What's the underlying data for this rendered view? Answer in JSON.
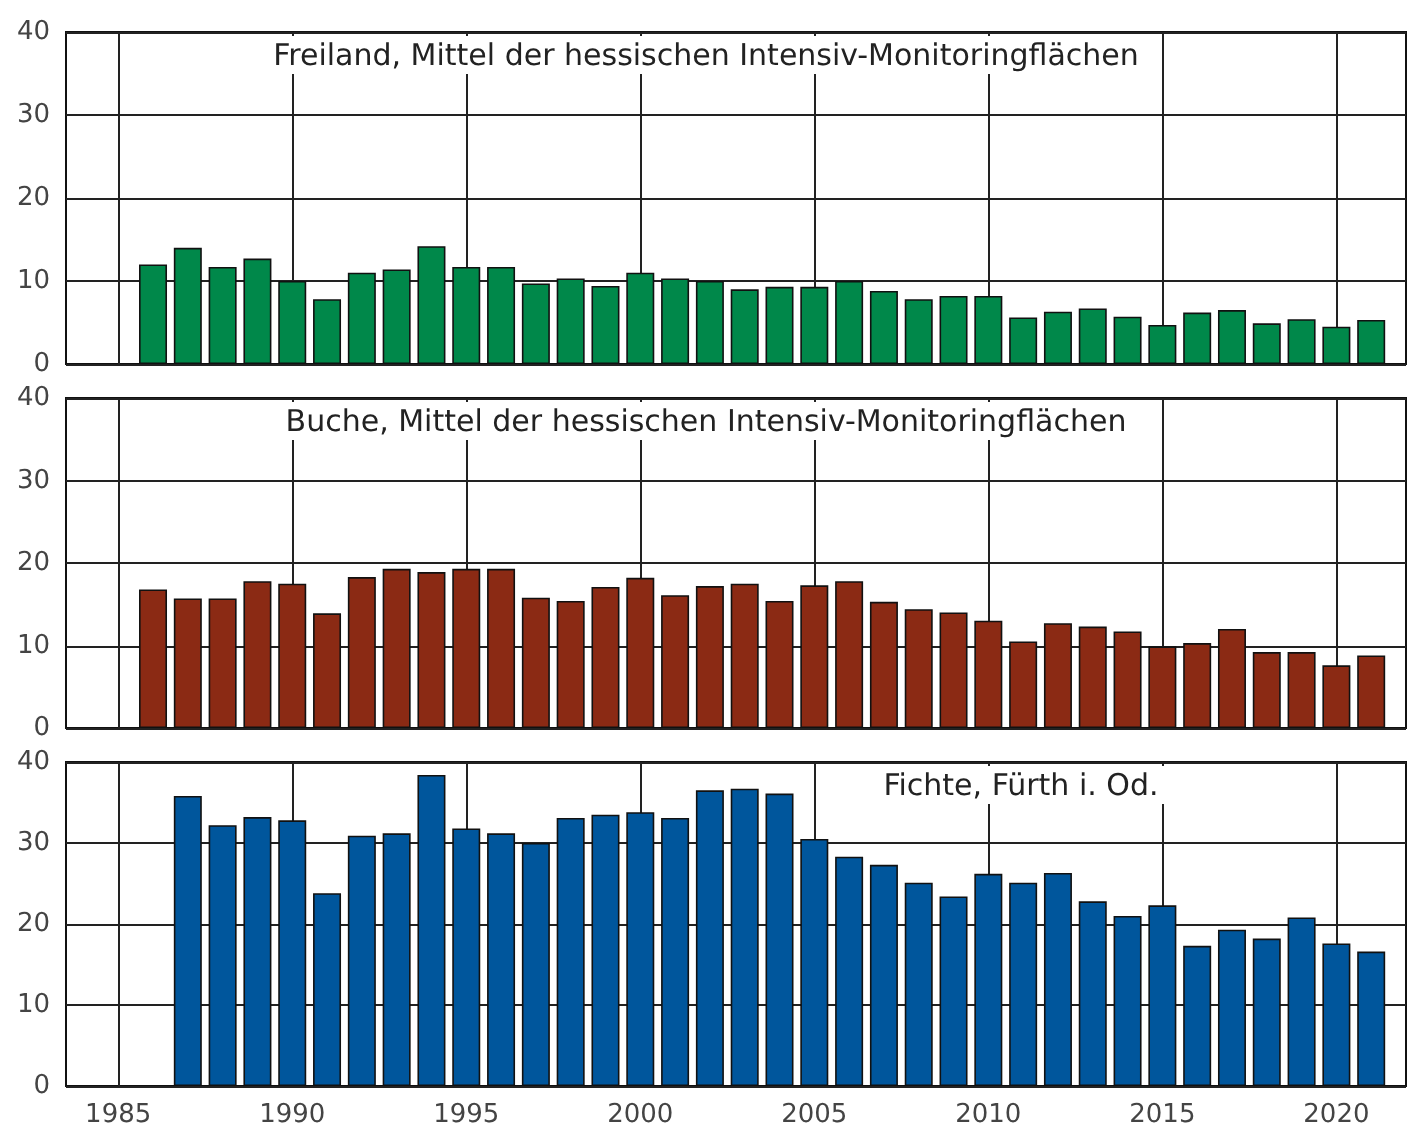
{
  "chart_data": [
    {
      "type": "bar",
      "title": "Freiland, Mittel der hessischen Intensiv-Monitoringflächen",
      "x": [
        1986,
        1987,
        1988,
        1989,
        1990,
        1991,
        1992,
        1993,
        1994,
        1995,
        1996,
        1997,
        1998,
        1999,
        2000,
        2001,
        2002,
        2003,
        2004,
        2005,
        2006,
        2007,
        2008,
        2009,
        2010,
        2011,
        2012,
        2013,
        2014,
        2015,
        2016,
        2017,
        2018,
        2019,
        2020,
        2021
      ],
      "values": [
        12,
        14,
        11.7,
        12.7,
        10,
        7.8,
        11,
        11.4,
        14.2,
        11.7,
        11.7,
        9.7,
        10.3,
        9.4,
        11,
        10.3,
        10,
        9,
        9.3,
        9.3,
        10,
        8.8,
        7.8,
        8.2,
        8.2,
        5.6,
        6.3,
        6.7,
        5.7,
        4.7,
        6.2,
        6.5,
        4.9,
        5.4,
        4.5,
        5.3
      ],
      "color": "#00884a",
      "xlim": [
        1983.5,
        2022
      ],
      "xticks": [
        1985,
        1990,
        1995,
        2000,
        2005,
        2010,
        2015,
        2020
      ],
      "ylim": [
        0,
        40
      ],
      "yticks": [
        0,
        10,
        20,
        30,
        40
      ],
      "grid": true,
      "tick_labels": "y"
    },
    {
      "type": "bar",
      "title": "Buche, Mittel der hessischen Intensiv-Monitoringflächen",
      "x": [
        1986,
        1987,
        1988,
        1989,
        1990,
        1991,
        1992,
        1993,
        1994,
        1995,
        1996,
        1997,
        1998,
        1999,
        2000,
        2001,
        2002,
        2003,
        2004,
        2005,
        2006,
        2007,
        2008,
        2009,
        2010,
        2011,
        2012,
        2013,
        2014,
        2015,
        2016,
        2017,
        2018,
        2019,
        2020,
        2021
      ],
      "values": [
        16.8,
        15.7,
        15.7,
        17.8,
        17.5,
        13.9,
        18.3,
        19.3,
        18.9,
        19.3,
        19.3,
        15.8,
        15.4,
        17.1,
        18.2,
        16.1,
        17.2,
        17.5,
        15.4,
        17.3,
        17.8,
        15.3,
        14.4,
        14,
        13,
        10.5,
        12.7,
        12.3,
        11.7,
        9.9,
        10.3,
        12,
        9.2,
        9.2,
        7.6,
        8.8
      ],
      "color": "#8b2a14",
      "xlim": [
        1983.5,
        2022
      ],
      "xticks": [
        1985,
        1990,
        1995,
        2000,
        2005,
        2010,
        2015,
        2020
      ],
      "ylim": [
        0,
        40
      ],
      "yticks": [
        0,
        10,
        20,
        30,
        40
      ],
      "grid": true,
      "tick_labels": "y"
    },
    {
      "type": "bar",
      "title": "Fichte, Fürth i. Od.",
      "x": [
        1987,
        1988,
        1989,
        1990,
        1991,
        1992,
        1993,
        1994,
        1995,
        1996,
        1997,
        1998,
        1999,
        2000,
        2001,
        2002,
        2003,
        2004,
        2005,
        2006,
        2007,
        2008,
        2009,
        2010,
        2011,
        2012,
        2013,
        2014,
        2015,
        2016,
        2017,
        2018,
        2019,
        2020,
        2021
      ],
      "values": [
        35.8,
        32.2,
        33.2,
        32.8,
        23.8,
        30.9,
        31.2,
        38.4,
        31.8,
        31.2,
        30,
        33.1,
        33.5,
        33.8,
        33.1,
        36.5,
        36.7,
        36.1,
        30.5,
        28.3,
        27.3,
        25.1,
        23.4,
        26.2,
        25.1,
        26.3,
        22.8,
        21,
        22.3,
        17.3,
        19.3,
        18.2,
        20.8,
        17.6,
        16.6
      ],
      "color": "#00569c",
      "xlim": [
        1983.5,
        2022
      ],
      "xticks": [
        1985,
        1990,
        1995,
        2000,
        2005,
        2010,
        2015,
        2020
      ],
      "ylim": [
        0,
        40
      ],
      "yticks": [
        0,
        10,
        20,
        30,
        40
      ],
      "grid": true
    }
  ]
}
